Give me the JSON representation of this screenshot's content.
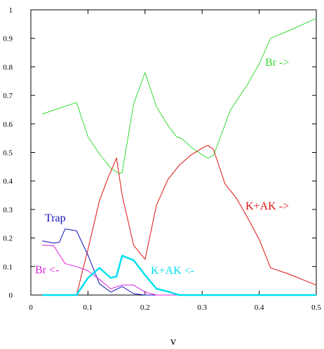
{
  "chart_data": {
    "type": "line",
    "title": "",
    "xlabel": "v",
    "ylabel": "",
    "xlim": [
      0,
      0.5
    ],
    "ylim": [
      0,
      1
    ],
    "grid": false,
    "x_ticks": [
      0,
      0.1,
      0.2,
      0.3,
      0.4,
      0.5
    ],
    "x_tick_labels": [
      "0",
      "0.1",
      "0.2",
      "0.3",
      "0.4",
      "0.5"
    ],
    "y_ticks": [
      0,
      0.1,
      0.2,
      0.3,
      0.4,
      0.5,
      0.6,
      0.7,
      0.8,
      0.9,
      1
    ],
    "y_tick_labels": [
      "0",
      "0.1",
      "0.2",
      "0.3",
      "0.4",
      "0.5",
      "0.6",
      "0.7",
      "0.8",
      "0.9",
      "1"
    ],
    "series": [
      {
        "name": "Br ->",
        "color": "#33dd33",
        "x": [
          0.02,
          0.05,
          0.08,
          0.1,
          0.12,
          0.14,
          0.155,
          0.16,
          0.18,
          0.2,
          0.22,
          0.24,
          0.255,
          0.265,
          0.28,
          0.29,
          0.31,
          0.32,
          0.335,
          0.35,
          0.38,
          0.4,
          0.42,
          0.45,
          0.5
        ],
        "y": [
          0.635,
          0.655,
          0.675,
          0.555,
          0.495,
          0.445,
          0.425,
          0.43,
          0.67,
          0.78,
          0.66,
          0.595,
          0.555,
          0.548,
          0.52,
          0.505,
          0.48,
          0.49,
          0.57,
          0.65,
          0.74,
          0.81,
          0.9,
          0.925,
          0.97
        ]
      },
      {
        "name": "K+AK ->",
        "color": "#dd1111",
        "x": [
          0.02,
          0.05,
          0.08,
          0.1,
          0.12,
          0.135,
          0.15,
          0.16,
          0.18,
          0.2,
          0.22,
          0.24,
          0.26,
          0.28,
          0.3,
          0.31,
          0.32,
          0.34,
          0.36,
          0.38,
          0.4,
          0.42,
          0.45,
          0.5
        ],
        "y": [
          0,
          0,
          0,
          0.16,
          0.33,
          0.41,
          0.48,
          0.35,
          0.175,
          0.125,
          0.315,
          0.405,
          0.455,
          0.49,
          0.515,
          0.525,
          0.51,
          0.39,
          0.34,
          0.27,
          0.195,
          0.095,
          0.075,
          0.035
        ]
      },
      {
        "name": "Trap",
        "color": "#1111bb",
        "x": [
          0.02,
          0.04,
          0.05,
          0.06,
          0.08,
          0.1,
          0.12,
          0.14,
          0.16,
          0.18,
          0.2,
          0.22,
          0.25,
          0.3,
          0.4,
          0.5
        ],
        "y": [
          0.19,
          0.182,
          0.185,
          0.232,
          0.225,
          0.14,
          0.04,
          0.01,
          0.03,
          0.005,
          0,
          0,
          0,
          0,
          0,
          0
        ]
      },
      {
        "name": "Br <-",
        "color": "#dd22dd",
        "x": [
          0.02,
          0.04,
          0.06,
          0.08,
          0.1,
          0.12,
          0.14,
          0.16,
          0.18,
          0.2,
          0.22,
          0.25,
          0.3,
          0.4,
          0.5
        ],
        "y": [
          0.175,
          0.173,
          0.11,
          0.1,
          0.085,
          0.055,
          0.022,
          0.035,
          0.035,
          0.01,
          0,
          0,
          0,
          0,
          0
        ]
      },
      {
        "name": "K+AK <-",
        "color": "#00e0ee",
        "x": [
          0.02,
          0.08,
          0.1,
          0.12,
          0.14,
          0.15,
          0.16,
          0.18,
          0.2,
          0.22,
          0.24,
          0.26,
          0.3,
          0.4,
          0.5
        ],
        "y": [
          0,
          0,
          0.06,
          0.095,
          0.06,
          0.065,
          0.138,
          0.122,
          0.07,
          0.022,
          0.012,
          0,
          0,
          0,
          0
        ]
      }
    ]
  }
}
